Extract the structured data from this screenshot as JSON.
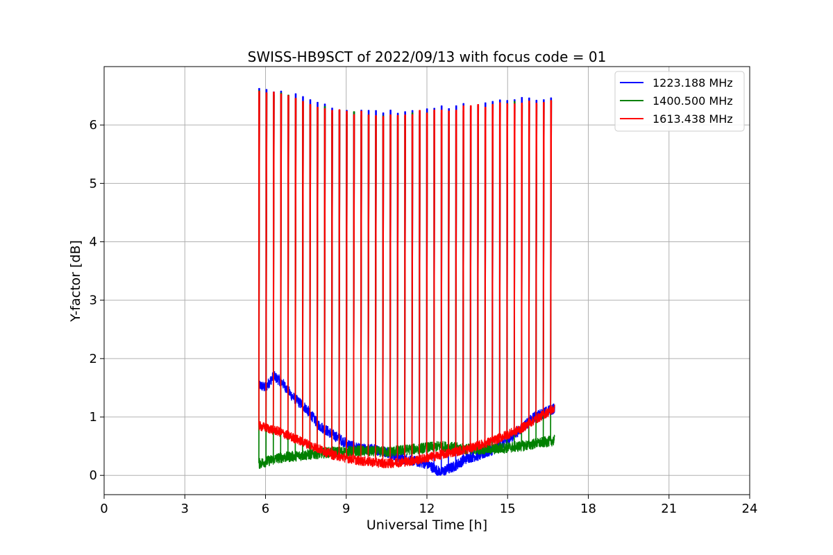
{
  "chart_data": {
    "type": "line",
    "title": "SWISS-HB9SCT of 2022/09/13 with focus code = 01",
    "xlabel": "Universal Time [h]",
    "ylabel": "Y-factor [dB]",
    "xlim": [
      0,
      24
    ],
    "ylim": [
      -0.33,
      7.0
    ],
    "xticks": [
      0,
      3,
      6,
      9,
      12,
      15,
      18,
      21,
      24
    ],
    "yticks": [
      0,
      1,
      2,
      3,
      4,
      5,
      6
    ],
    "grid": true,
    "legend_position": "top-right",
    "calibration_pulses": {
      "start_h": 5.75,
      "end_h": 16.6,
      "count": 41,
      "peak_profile": {
        "x": [
          5.75,
          6.5,
          7.5,
          8.5,
          9.5,
          10.5,
          11.5,
          12.5,
          13.5,
          14.5,
          15.5,
          16.6
        ],
        "y": [
          6.6,
          6.55,
          6.4,
          6.25,
          6.2,
          6.18,
          6.2,
          6.25,
          6.3,
          6.35,
          6.4,
          6.4
        ]
      }
    },
    "series": [
      {
        "name": "1223.188 MHz",
        "color": "#0000ff",
        "baseline": {
          "x": [
            5.75,
            6.0,
            6.3,
            6.6,
            7.0,
            7.5,
            8.0,
            8.5,
            9.0,
            9.5,
            10.0,
            10.5,
            11.0,
            11.5,
            12.0,
            12.5,
            13.0,
            13.5,
            14.0,
            14.5,
            15.0,
            15.5,
            16.0,
            16.5,
            16.75
          ],
          "y": [
            1.55,
            1.5,
            1.7,
            1.6,
            1.35,
            1.15,
            0.85,
            0.7,
            0.55,
            0.45,
            0.45,
            0.4,
            0.3,
            0.25,
            0.2,
            0.05,
            0.15,
            0.3,
            0.35,
            0.45,
            0.6,
            0.8,
            1.0,
            1.1,
            1.15
          ]
        },
        "noise": 0.09
      },
      {
        "name": "1400.500 MHz",
        "color": "#008000",
        "baseline": {
          "x": [
            5.75,
            6.5,
            7.5,
            8.5,
            9.5,
            10.5,
            11.5,
            12.5,
            13.5,
            14.5,
            15.5,
            16.75
          ],
          "y": [
            0.2,
            0.3,
            0.35,
            0.4,
            0.42,
            0.4,
            0.45,
            0.5,
            0.45,
            0.45,
            0.5,
            0.6
          ]
        },
        "noise": 0.09
      },
      {
        "name": "1613.438 MHz",
        "color": "#ff0000",
        "baseline": {
          "x": [
            5.75,
            6.5,
            7.5,
            8.5,
            9.5,
            10.5,
            11.5,
            12.5,
            13.5,
            14.5,
            15.5,
            16.0,
            16.75
          ],
          "y": [
            0.85,
            0.75,
            0.55,
            0.35,
            0.25,
            0.2,
            0.25,
            0.35,
            0.45,
            0.6,
            0.8,
            0.95,
            1.15
          ]
        },
        "noise": 0.08
      }
    ]
  }
}
